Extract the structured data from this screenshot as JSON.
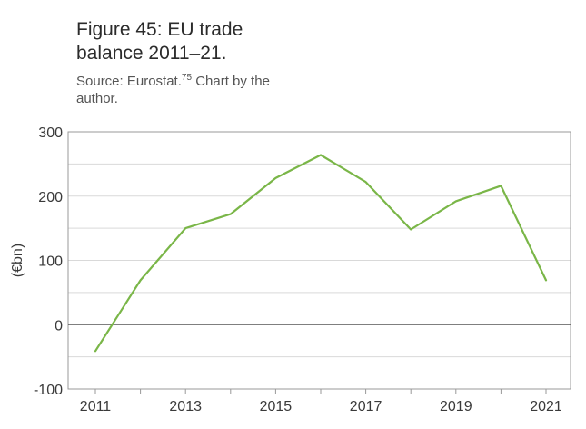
{
  "figure": {
    "title": "Figure 45: EU trade balance 2011–21.",
    "source_prefix": "Source: Eurostat.",
    "source_note": "75",
    "source_suffix": " Chart by the author."
  },
  "chart_data": {
    "type": "line",
    "title": "Figure 45: EU trade balance 2011–21.",
    "subtitle": "Source: Eurostat.75 Chart by the author.",
    "xlabel": "",
    "ylabel": "(€bn)",
    "x": [
      2011,
      2012,
      2013,
      2014,
      2015,
      2016,
      2017,
      2018,
      2019,
      2020,
      2021
    ],
    "series": [
      {
        "values": [
          -41,
          69,
          150,
          172,
          228,
          264,
          222,
          148,
          192,
          216,
          69
        ]
      }
    ],
    "xticks": [
      2011,
      2013,
      2015,
      2017,
      2019,
      2021
    ],
    "yticks": [
      -100,
      0,
      100,
      200,
      300
    ],
    "xlim": [
      2011,
      2021
    ],
    "ylim": [
      -100,
      300
    ],
    "grid": "horizontal",
    "legend": "none",
    "colors": {
      "line": "#7ab648",
      "grid": "#d9d9d9",
      "zero_line": "#555555",
      "frame": "#999999"
    }
  }
}
